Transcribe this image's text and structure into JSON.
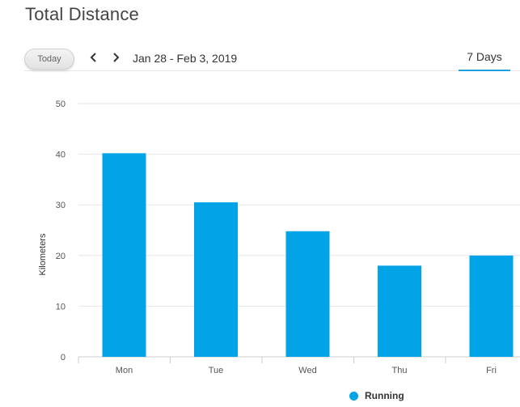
{
  "header": {
    "title": "Total Distance"
  },
  "toolbar": {
    "today_label": "Today",
    "prev_icon": "chevron-left-icon",
    "next_icon": "chevron-right-icon",
    "date_range": "Jan 28 - Feb 3, 2019",
    "range_tab": "7 Days"
  },
  "chart_data": {
    "type": "bar",
    "categories": [
      "Mon",
      "Tue",
      "Wed",
      "Thu",
      "Fri"
    ],
    "series": [
      {
        "name": "Running",
        "values": [
          40.2,
          30.5,
          24.8,
          18.0,
          20.0
        ],
        "color": "#03a3e8"
      }
    ],
    "ylabel": "Kilometers",
    "xlabel": "",
    "ylim": [
      0,
      50
    ],
    "yticks": [
      0,
      10,
      20,
      30,
      40,
      50
    ],
    "grid": true,
    "legend_position": "bottom-right"
  },
  "legend": {
    "label": "Running",
    "color": "#03a3e8"
  }
}
